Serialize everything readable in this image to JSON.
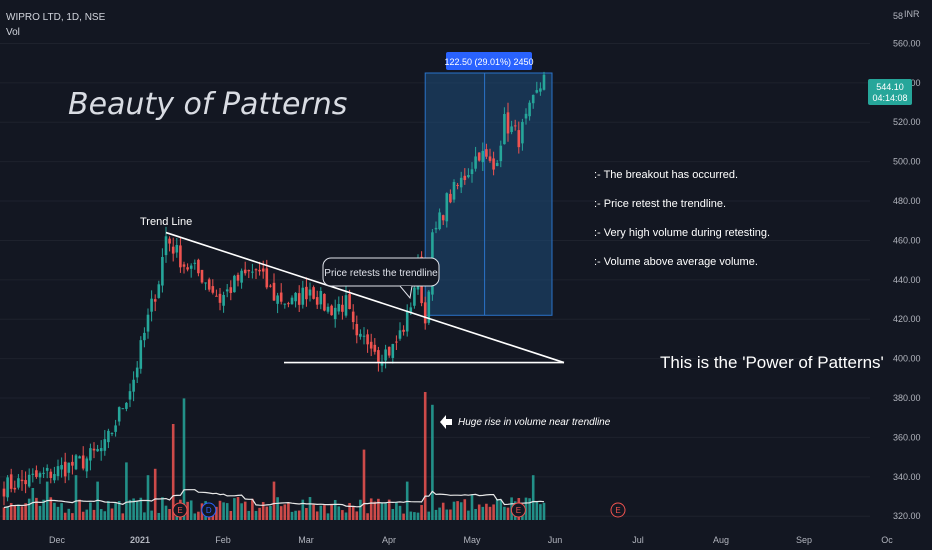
{
  "header": {
    "symbol": "WIPRO LTD, 1D, NSE",
    "indicator": "Vol",
    "currency": "INR",
    "top_tick": "58"
  },
  "headline": "Beauty of Patterns",
  "tagline": "This is the 'Power of Patterns'",
  "trend_label": "Trend Line",
  "retest_callout": "Price retests the trendline",
  "volume_note": "Huge rise in volume near trendline",
  "measure_label": "122.50 (29.01%) 2450",
  "notes": [
    ":- The breakout has occurred.",
    ":- Price retest the trendline.",
    ":- Very high volume during retesting.",
    ":- Volume above average volume."
  ],
  "price_tag": {
    "value": "544.10",
    "countdown": "04:14:08"
  },
  "earnings_marker": "E",
  "dividend_marker": "D",
  "colors": {
    "background": "#131722",
    "up": "#26a69a",
    "down": "#ef5350",
    "measure_fill": "#1e4d7a",
    "measure_border": "#2a73c9",
    "price_tag": "#26a69a",
    "text": "#d1d4dc",
    "axis_text": "#b2b5be"
  },
  "chart_data": {
    "type": "candlestick",
    "y_axis": {
      "min": 313,
      "max": 578,
      "ticks": [
        320,
        340,
        360,
        380,
        400,
        420,
        440,
        460,
        480,
        500,
        520,
        540,
        560
      ]
    },
    "x_axis": {
      "labels": [
        "Dec",
        "2021",
        "Feb",
        "Mar",
        "Apr",
        "May",
        "Jun",
        "Jul",
        "Aug",
        "Sep",
        "Oc"
      ]
    },
    "price_start": 335,
    "price_checkpoints": [
      [
        0,
        335
      ],
      [
        10,
        340
      ],
      [
        22,
        348
      ],
      [
        28,
        355
      ],
      [
        32,
        372
      ],
      [
        36,
        390
      ],
      [
        40,
        420
      ],
      [
        43,
        440
      ],
      [
        45,
        462
      ],
      [
        50,
        448
      ],
      [
        55,
        442
      ],
      [
        60,
        430
      ],
      [
        65,
        440
      ],
      [
        70,
        445
      ],
      [
        75,
        432
      ],
      [
        80,
        428
      ],
      [
        85,
        436
      ],
      [
        90,
        425
      ],
      [
        95,
        428
      ],
      [
        98,
        408
      ],
      [
        102,
        410
      ],
      [
        104,
        402
      ],
      [
        108,
        405
      ],
      [
        112,
        420
      ],
      [
        115,
        446
      ],
      [
        117,
        418
      ],
      [
        119,
        460
      ],
      [
        123,
        480
      ],
      [
        127,
        490
      ],
      [
        132,
        505
      ],
      [
        136,
        496
      ],
      [
        139,
        520
      ],
      [
        143,
        512
      ],
      [
        146,
        525
      ],
      [
        149,
        538
      ],
      [
        150,
        544.1
      ]
    ],
    "volume_spikes": [
      [
        8,
        0.25
      ],
      [
        12,
        0.3
      ],
      [
        20,
        0.35
      ],
      [
        26,
        0.3
      ],
      [
        34,
        0.45
      ],
      [
        40,
        0.35
      ],
      [
        42,
        0.4
      ],
      [
        47,
        0.75
      ],
      [
        50,
        0.95
      ],
      [
        75,
        0.3
      ],
      [
        100,
        0.55
      ],
      [
        112,
        0.3
      ],
      [
        117,
        1.0
      ],
      [
        119,
        0.9
      ],
      [
        130,
        0.2
      ],
      [
        147,
        0.35
      ]
    ],
    "trendline": {
      "from": [
        45,
        464
      ],
      "to": [
        150,
        398
      ]
    },
    "support": {
      "from": [
        25,
        398
      ],
      "to": [
        150,
        398
      ]
    },
    "measure": {
      "from_index": 117,
      "to_index": 150,
      "low": 422,
      "high": 545,
      "change": 122.5,
      "change_pct": 29.01,
      "bars": 2450
    },
    "last_price": 544.1,
    "event_markers": [
      {
        "index": 10,
        "type": "E"
      },
      {
        "index": 18,
        "type": "D"
      },
      {
        "index": 104,
        "type": "E"
      }
    ],
    "future_event": {
      "month_index": 7,
      "type": "E"
    }
  }
}
